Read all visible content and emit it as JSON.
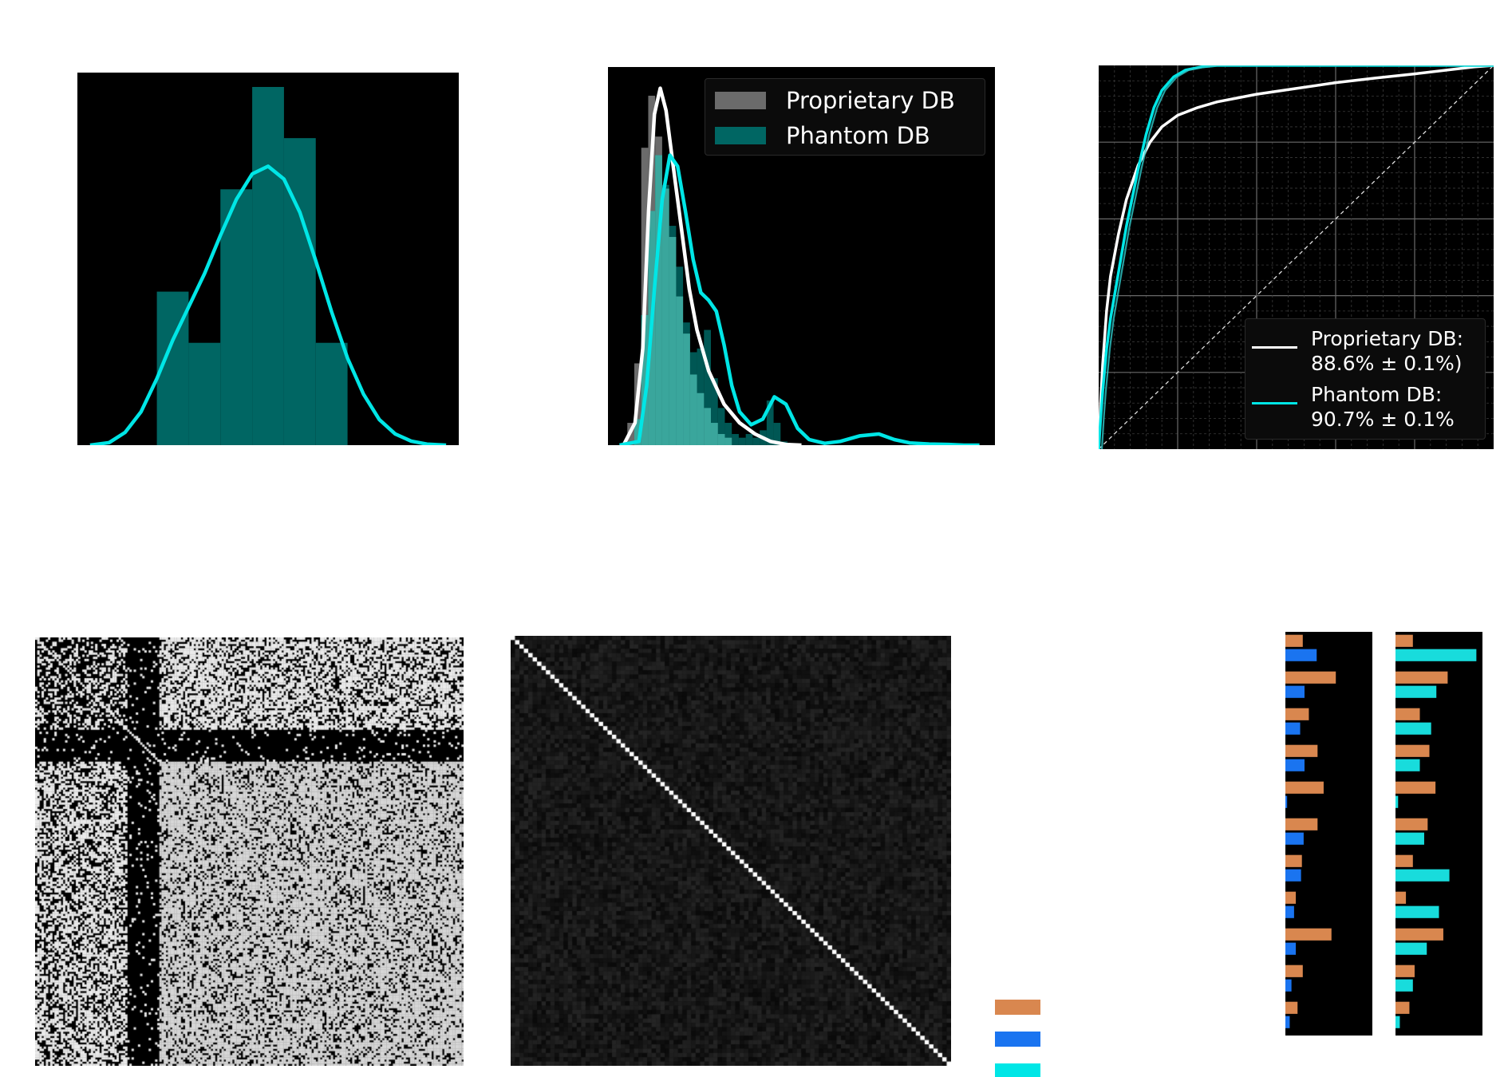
{
  "colors": {
    "background": "#000000",
    "proprietary_hist": "#6b6b6b",
    "phantom_hist": "#006663",
    "phantom_hist_light": "#3aa69c",
    "cyan": "#00e6e6",
    "white": "#ffffff",
    "orange": "#d9874f",
    "blue": "#1a74f0",
    "cyan_bar": "#18dcdc"
  },
  "chart_data": [
    {
      "id": "top-left-histogram",
      "type": "bar",
      "title": "",
      "xlabel": "",
      "ylabel": "",
      "xlim": [
        0,
        12
      ],
      "ylim": [
        0,
        7.0
      ],
      "bins": [
        {
          "x0": 2.5,
          "x1": 3.5,
          "count": 3.0
        },
        {
          "x0": 3.5,
          "x1": 4.5,
          "count": 2.0
        },
        {
          "x0": 4.5,
          "x1": 5.5,
          "count": 5.0
        },
        {
          "x0": 5.5,
          "x1": 6.5,
          "count": 7.0
        },
        {
          "x0": 6.5,
          "x1": 7.5,
          "count": 6.0
        },
        {
          "x0": 7.5,
          "x1": 8.5,
          "count": 2.0
        }
      ],
      "kde": {
        "x": [
          0.4,
          1.0,
          1.5,
          2.0,
          2.5,
          3.0,
          3.5,
          4.0,
          4.5,
          5.0,
          5.5,
          6.0,
          6.5,
          7.0,
          7.5,
          8.0,
          8.5,
          9.0,
          9.5,
          10.0,
          10.5,
          11.0,
          11.6
        ],
        "y": [
          0.0,
          0.05,
          0.25,
          0.65,
          1.3,
          2.05,
          2.7,
          3.35,
          4.1,
          4.8,
          5.3,
          5.45,
          5.2,
          4.55,
          3.6,
          2.6,
          1.7,
          1.0,
          0.5,
          0.22,
          0.08,
          0.02,
          0.0
        ]
      }
    },
    {
      "id": "top-middle-histogram",
      "type": "bar",
      "title": "",
      "xlabel": "",
      "ylabel": "",
      "xlim": [
        0,
        10
      ],
      "ylim": [
        0,
        10
      ],
      "legend": {
        "placement": "top-right",
        "entries": [
          {
            "label": "Proprietary DB",
            "color": "#6b6b6b"
          },
          {
            "label": "Phantom DB",
            "color": "#006663"
          }
        ]
      },
      "series": [
        {
          "name": "Proprietary DB",
          "bin_width": 0.18,
          "bin_start": 0.5,
          "counts": [
            0.6,
            2.2,
            8.0,
            9.4,
            8.3,
            6.9,
            5.6,
            4.0,
            3.0,
            1.9,
            1.4,
            1.0,
            0.6,
            0.3,
            0.2
          ]
        },
        {
          "name": "Phantom DB",
          "bin_width": 0.18,
          "bin_start": 0.5,
          "counts": [
            0.0,
            0.7,
            3.5,
            6.3,
            7.8,
            7.0,
            5.9,
            4.8,
            3.3,
            2.5,
            2.6,
            3.1,
            1.8,
            1.0,
            0.6,
            0.3,
            0.2,
            0.3,
            0.2,
            0.4,
            1.2,
            0.6,
            0.1
          ]
        }
      ],
      "kde_white": {
        "x": [
          0.4,
          0.7,
          0.9,
          1.05,
          1.2,
          1.35,
          1.5,
          1.7,
          1.9,
          2.1,
          2.3,
          2.6,
          3.0,
          3.4,
          3.8,
          4.2,
          4.6,
          5.0
        ],
        "y": [
          0.0,
          0.6,
          2.6,
          6.3,
          8.9,
          9.6,
          9.0,
          7.4,
          5.8,
          4.2,
          3.1,
          2.0,
          1.1,
          0.6,
          0.3,
          0.1,
          0.02,
          0.0
        ]
      },
      "kde_cyan": {
        "x": [
          0.3,
          0.8,
          1.0,
          1.2,
          1.4,
          1.6,
          1.8,
          2.0,
          2.2,
          2.4,
          2.6,
          2.8,
          3.0,
          3.2,
          3.4,
          3.7,
          4.0,
          4.3,
          4.6,
          4.9,
          5.2,
          5.6,
          6.0,
          6.5,
          7.0,
          7.4,
          7.8,
          8.3,
          8.8,
          9.2,
          9.6
        ],
        "y": [
          0.0,
          0.1,
          1.6,
          4.2,
          6.6,
          7.8,
          7.5,
          6.3,
          5.0,
          4.1,
          3.9,
          3.6,
          2.7,
          1.6,
          0.9,
          0.55,
          0.7,
          1.3,
          1.1,
          0.45,
          0.15,
          0.05,
          0.1,
          0.25,
          0.3,
          0.15,
          0.06,
          0.03,
          0.02,
          0.0,
          0.0
        ]
      }
    },
    {
      "id": "top-right-roc",
      "type": "line",
      "title": "",
      "xlabel": "",
      "ylabel": "",
      "xlim": [
        0,
        1
      ],
      "ylim": [
        0,
        1
      ],
      "grid": "on",
      "legend": {
        "placement": "bottom-right",
        "entries": [
          {
            "label_line1": "Proprietary DB:",
            "label_line2": "88.6% ± 0.1%)",
            "color": "#ffffff"
          },
          {
            "label_line1": "Phantom DB:",
            "label_line2": "90.7% ± 0.1%",
            "color": "#00e6e6"
          }
        ]
      },
      "series": [
        {
          "name": "Proprietary DB",
          "x": [
            0.0,
            0.005,
            0.01,
            0.02,
            0.03,
            0.05,
            0.07,
            0.1,
            0.13,
            0.16,
            0.2,
            0.25,
            0.3,
            0.4,
            0.5,
            0.6,
            0.7,
            0.8,
            0.9,
            0.95,
            1.0
          ],
          "y": [
            0.0,
            0.12,
            0.22,
            0.36,
            0.45,
            0.56,
            0.65,
            0.74,
            0.8,
            0.84,
            0.87,
            0.89,
            0.905,
            0.925,
            0.94,
            0.955,
            0.967,
            0.978,
            0.99,
            0.996,
            1.0
          ]
        },
        {
          "name": "Phantom DB",
          "x": [
            0.0,
            0.005,
            0.01,
            0.02,
            0.03,
            0.05,
            0.07,
            0.1,
            0.12,
            0.14,
            0.16,
            0.19,
            0.22,
            0.26,
            0.3,
            0.4,
            0.6,
            0.8,
            1.0
          ],
          "y": [
            0.0,
            0.08,
            0.15,
            0.26,
            0.34,
            0.46,
            0.58,
            0.73,
            0.82,
            0.89,
            0.935,
            0.97,
            0.988,
            0.996,
            1.0,
            1.0,
            1.0,
            1.0,
            1.0
          ]
        }
      ]
    },
    {
      "id": "bottom-left-binary-matrix",
      "type": "heatmap",
      "title": "",
      "note": ""
    },
    {
      "id": "bottom-middle-correlation-matrix",
      "type": "heatmap",
      "title": ""
    },
    {
      "id": "bottom-right-bars-left",
      "type": "bar",
      "orientation": "horizontal",
      "xlim": [
        0,
        1
      ],
      "groups": [
        {
          "orange": 0.2,
          "blue": 0.36
        },
        {
          "orange": 0.58,
          "blue": 0.22
        },
        {
          "orange": 0.27,
          "blue": 0.17
        },
        {
          "orange": 0.37,
          "blue": 0.22
        },
        {
          "orange": 0.44,
          "blue": 0.02
        },
        {
          "orange": 0.37,
          "blue": 0.21
        },
        {
          "orange": 0.19,
          "blue": 0.18
        },
        {
          "orange": 0.12,
          "blue": 0.1
        },
        {
          "orange": 0.53,
          "blue": 0.12
        },
        {
          "orange": 0.2,
          "blue": 0.07
        },
        {
          "orange": 0.14,
          "blue": 0.05
        }
      ]
    },
    {
      "id": "bottom-right-bars-right",
      "type": "bar",
      "orientation": "horizontal",
      "xlim": [
        0,
        1
      ],
      "groups": [
        {
          "orange": 0.2,
          "cyan": 0.93
        },
        {
          "orange": 0.6,
          "cyan": 0.47
        },
        {
          "orange": 0.28,
          "cyan": 0.41
        },
        {
          "orange": 0.39,
          "cyan": 0.28
        },
        {
          "orange": 0.46,
          "cyan": 0.03
        },
        {
          "orange": 0.37,
          "cyan": 0.33
        },
        {
          "orange": 0.2,
          "cyan": 0.62
        },
        {
          "orange": 0.12,
          "cyan": 0.5
        },
        {
          "orange": 0.55,
          "cyan": 0.36
        },
        {
          "orange": 0.22,
          "cyan": 0.2
        },
        {
          "orange": 0.16,
          "cyan": 0.05
        }
      ]
    }
  ],
  "bottom_key": {
    "entries": [
      {
        "color": "#d9874f"
      },
      {
        "color": "#1a74f0"
      },
      {
        "color": "#00e6e6"
      }
    ]
  }
}
